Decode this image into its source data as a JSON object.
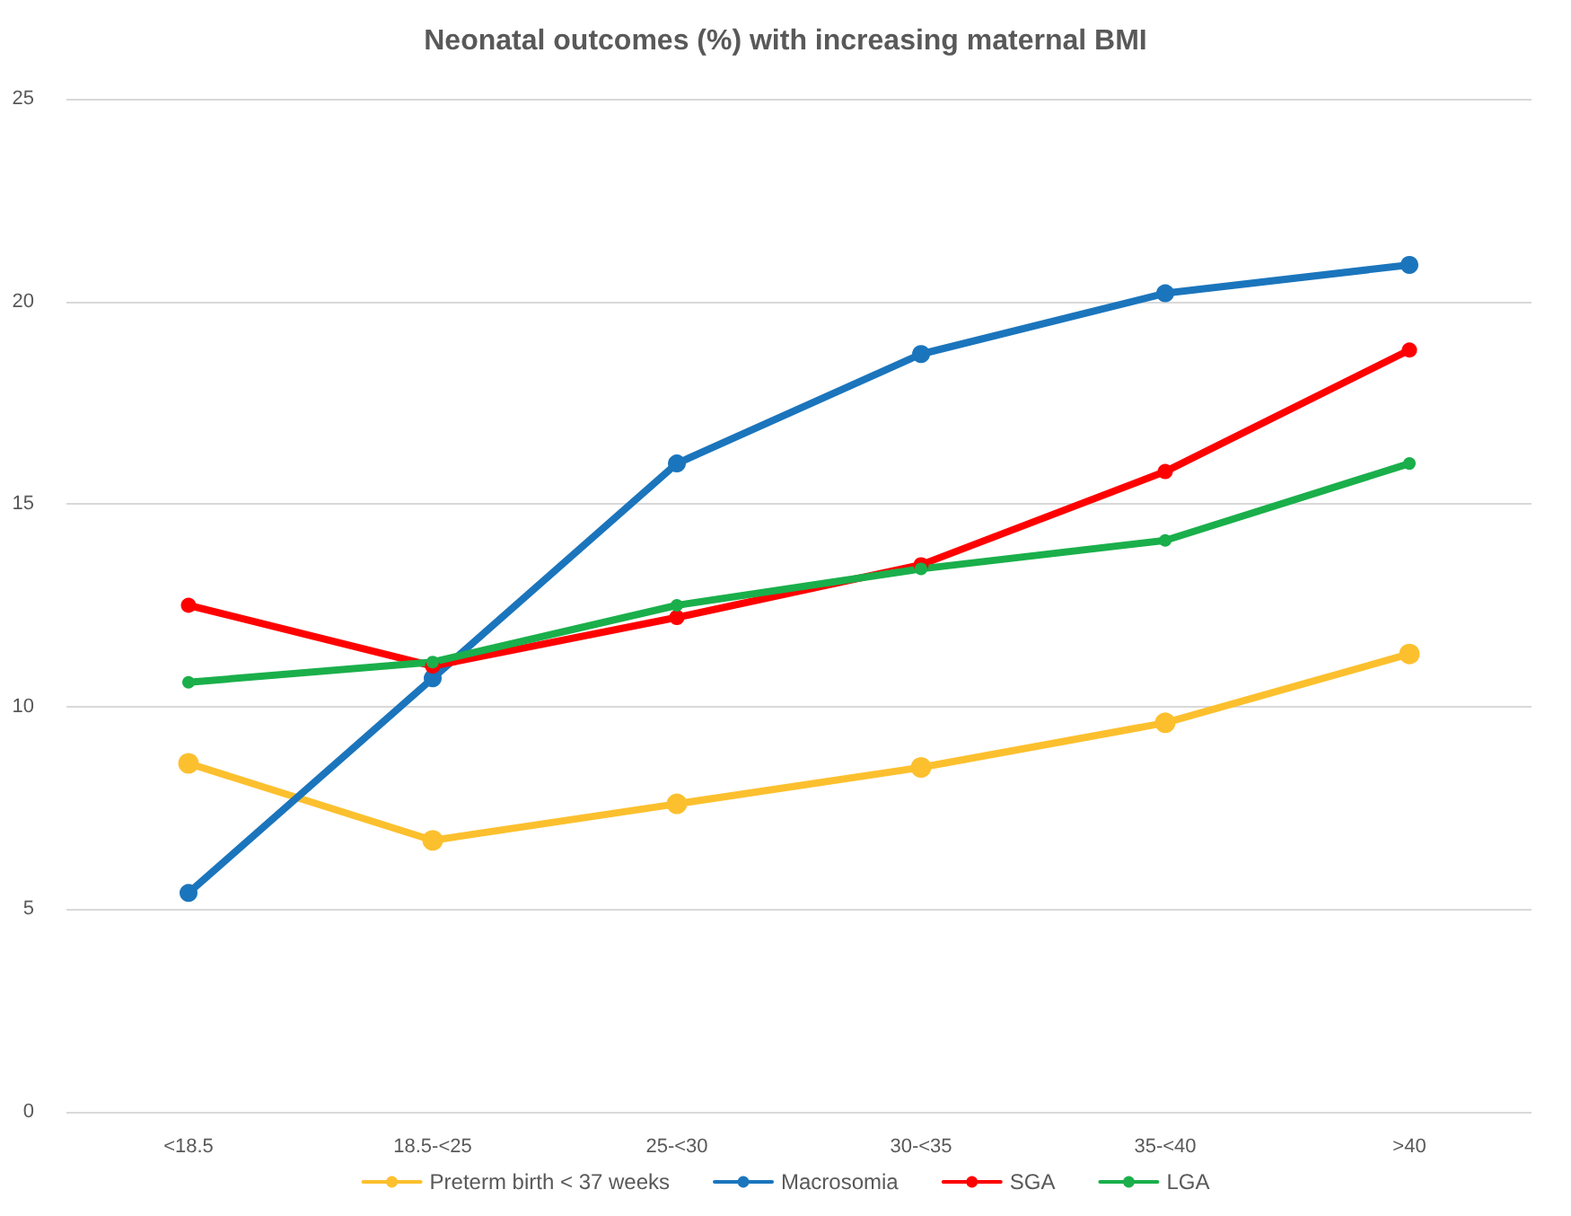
{
  "chart_data": {
    "type": "line",
    "title": "Neonatal outcomes (%) with increasing maternal BMI",
    "categories": [
      "<18.5",
      "18.5-<25",
      "25-<30",
      "30-<35",
      "35-<40",
      ">40"
    ],
    "series": [
      {
        "name": "Preterm birth < 37 weeks",
        "color": "#fcc02e",
        "values": [
          8.6,
          6.7,
          7.6,
          8.5,
          9.6,
          11.3
        ]
      },
      {
        "name": "Macrosomia",
        "color": "#1b75bc",
        "values": [
          5.4,
          10.7,
          16.0,
          18.7,
          20.2,
          20.9
        ]
      },
      {
        "name": "SGA",
        "color": "#ff0000",
        "values": [
          12.5,
          11.0,
          12.2,
          13.5,
          15.8,
          18.8
        ]
      },
      {
        "name": "LGA",
        "color": "#1aaf4b",
        "values": [
          10.6,
          11.1,
          12.5,
          13.4,
          14.1,
          16.0
        ]
      }
    ],
    "ylim": [
      0,
      25
    ],
    "yticks": [
      0,
      5,
      10,
      15,
      20,
      25
    ],
    "grid": "y",
    "legend": "bottom",
    "marker": "circle",
    "line_style": "solid"
  }
}
